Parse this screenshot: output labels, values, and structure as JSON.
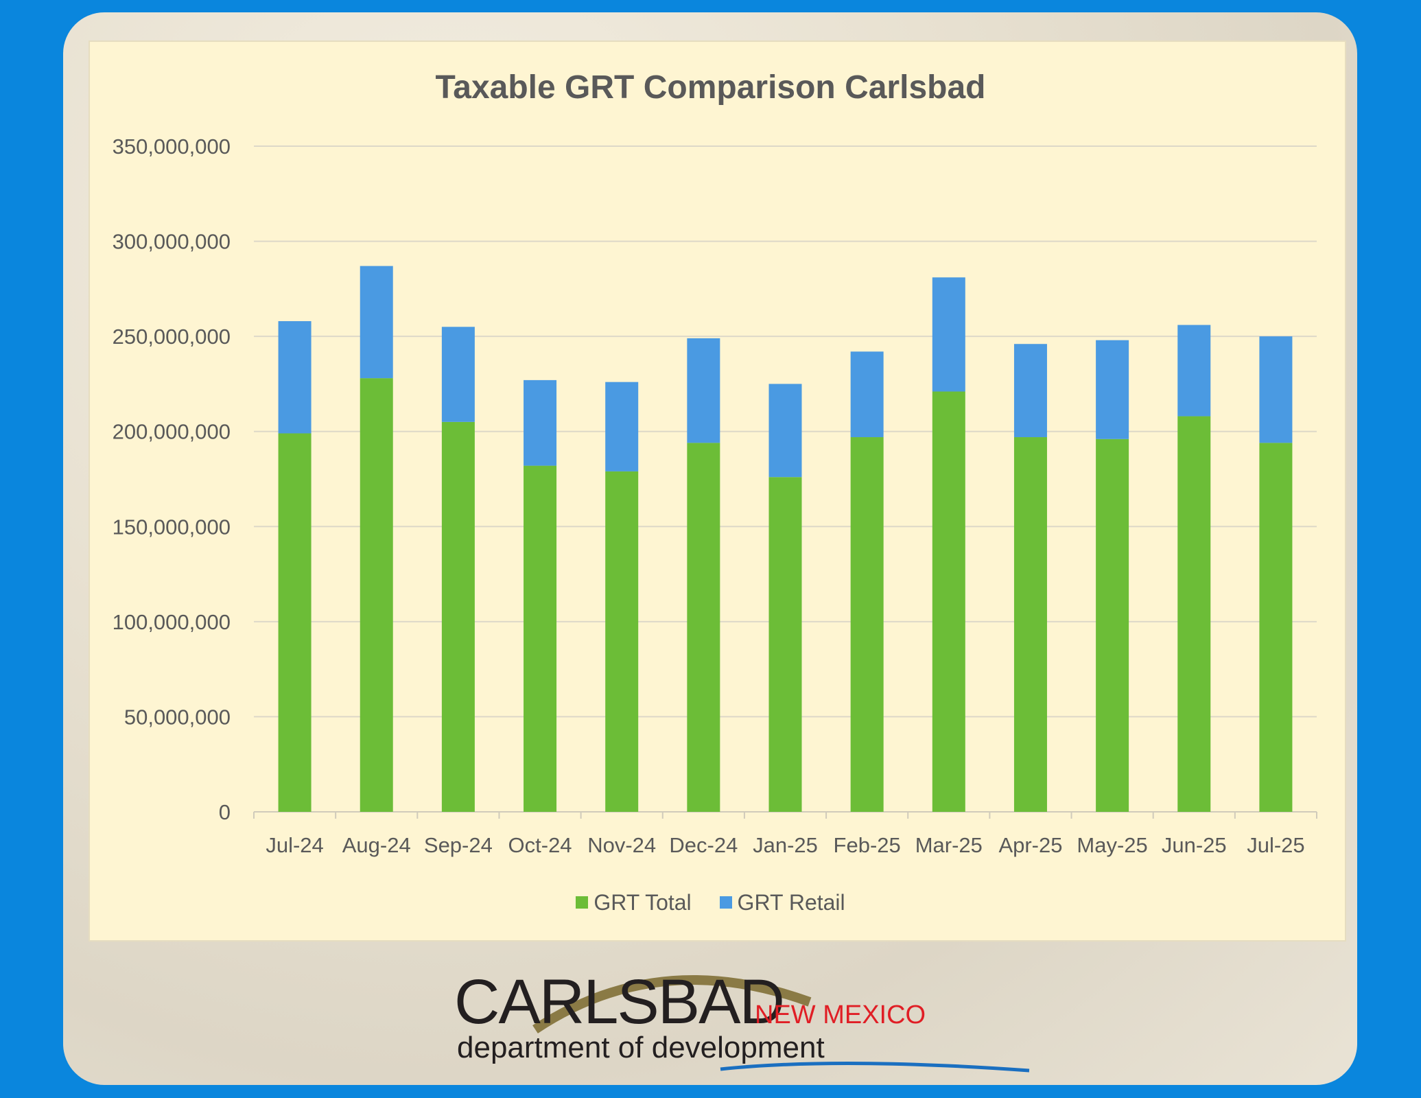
{
  "chart_data": {
    "type": "bar",
    "stacked": true,
    "title": "Taxable GRT Comparison Carlsbad",
    "xlabel": "",
    "ylabel": "",
    "categories": [
      "Jul-24",
      "Aug-24",
      "Sep-24",
      "Oct-24",
      "Nov-24",
      "Dec-24",
      "Jan-25",
      "Feb-25",
      "Mar-25",
      "Apr-25",
      "May-25",
      "Jun-25",
      "Jul-25"
    ],
    "series": [
      {
        "name": "GRT Total",
        "color": "#6cbd37",
        "values": [
          199000000,
          228000000,
          205000000,
          182000000,
          179000000,
          194000000,
          176000000,
          197000000,
          221000000,
          197000000,
          196000000,
          208000000,
          194000000
        ]
      },
      {
        "name": "GRT Retail",
        "color": "#4a9ae2",
        "values": [
          59000000,
          59000000,
          50000000,
          45000000,
          47000000,
          55000000,
          49000000,
          45000000,
          60000000,
          49000000,
          52000000,
          48000000,
          56000000
        ]
      }
    ],
    "ylim": [
      0,
      350000000
    ],
    "yticks": [
      "0",
      "50,000,000",
      "100,000,000",
      "150,000,000",
      "200,000,000",
      "250,000,000",
      "300,000,000",
      "350,000,000"
    ],
    "grid": true,
    "legend": "bottom"
  },
  "logo": {
    "name": "CARLSBAD",
    "state": "NEW MEXICO",
    "dept": "department of development"
  }
}
